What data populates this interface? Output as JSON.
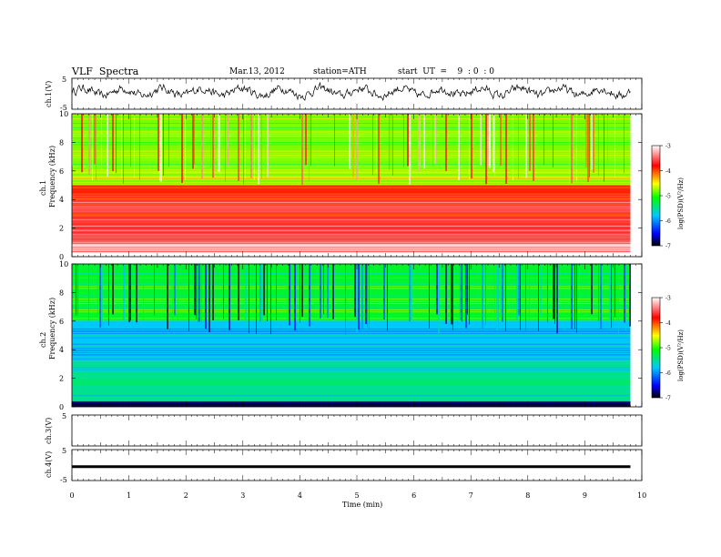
{
  "header": {
    "title": "VLF  Spectra",
    "date": "Mar.13, 2012",
    "station": "station=ATH",
    "start": "start  UT  =    9  : 0  : 0"
  },
  "chart_data": [
    {
      "type": "line",
      "panel": "ch1-waveform",
      "ylabel": "ch.1(V)",
      "ylim": [
        -5,
        5
      ],
      "yticks": [
        "5",
        "-5"
      ],
      "xlim": [
        0,
        10
      ],
      "description": "dense noisy waveform oscillating roughly between -2 and 3 V over the full record"
    },
    {
      "type": "heatmap",
      "panel": "ch1-spectrogram",
      "ylabel": "ch.1\nFrequency  (kHz)",
      "ylabel_line1": "ch.1",
      "ylabel_line2": "Frequency  (kHz)",
      "ylim": [
        0,
        10
      ],
      "yticks": [
        "0",
        "2",
        "4",
        "6",
        "8",
        "10"
      ],
      "xlim": [
        0,
        9.8
      ],
      "colorbar": {
        "label": "log(PSD)(V²/Hz)",
        "range": [
          -7,
          -3
        ],
        "ticks": [
          "-3",
          "-4",
          "-5",
          "-6",
          "-7"
        ]
      },
      "bands_kHz": [
        {
          "from": 0.3,
          "to": 1.0,
          "level": -3.2
        },
        {
          "from": 1.0,
          "to": 4.0,
          "level": -3.6
        },
        {
          "from": 4.0,
          "to": 5.0,
          "level": -3.9
        },
        {
          "from": 5.0,
          "to": 6.3,
          "level": -4.7
        },
        {
          "from": 6.3,
          "to": 10.0,
          "level": -4.8
        }
      ]
    },
    {
      "type": "heatmap",
      "panel": "ch2-spectrogram",
      "ylabel_line1": "ch.2",
      "ylabel_line2": "Frequency  (kHz)",
      "ylim": [
        0,
        10
      ],
      "yticks": [
        "0",
        "2",
        "4",
        "6",
        "8",
        "10"
      ],
      "xlim": [
        0,
        9.8
      ],
      "colorbar": {
        "label": "log(PSD)(V²/Hz)",
        "range": [
          -7,
          -3
        ],
        "ticks": [
          "-3",
          "-4",
          "-5",
          "-6",
          "-7"
        ]
      },
      "bands_kHz": [
        {
          "from": 0.0,
          "to": 0.4,
          "level": -6.8
        },
        {
          "from": 0.4,
          "to": 3.2,
          "level": -5.5
        },
        {
          "from": 3.2,
          "to": 6.0,
          "level": -5.8
        },
        {
          "from": 6.0,
          "to": 10.0,
          "level": -5.2
        }
      ]
    },
    {
      "type": "line",
      "panel": "ch3-waveform",
      "ylabel": "ch.3(V)",
      "ylim": [
        -5,
        5
      ],
      "yticks": [
        "5",
        "-5"
      ],
      "description": "no signal"
    },
    {
      "type": "line",
      "panel": "ch4-waveform",
      "ylabel": "ch.4(V)",
      "ylim": [
        -5,
        5
      ],
      "yticks": [
        "5",
        "-5"
      ],
      "xlim": [
        0,
        9.8
      ],
      "values_V": [
        -0.5,
        -0.5
      ],
      "description": "flat trace near -0.5 V"
    }
  ],
  "xaxis": {
    "label": "Time  (min)",
    "range": [
      0,
      10
    ],
    "ticks": [
      "0",
      "1",
      "2",
      "3",
      "4",
      "5",
      "6",
      "7",
      "8",
      "9",
      "10"
    ]
  },
  "colors": {
    "colormap": [
      "#000000",
      "#0000ff",
      "#00c8ff",
      "#00ff00",
      "#ffff00",
      "#ff0000",
      "#ffffff"
    ]
  }
}
